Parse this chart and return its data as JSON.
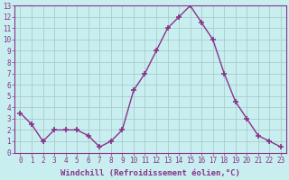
{
  "x": [
    0,
    1,
    2,
    3,
    4,
    5,
    6,
    7,
    8,
    9,
    10,
    11,
    12,
    13,
    14,
    15,
    16,
    17,
    18,
    19,
    20,
    21,
    22,
    23
  ],
  "y": [
    3.5,
    2.5,
    1.0,
    2.0,
    2.0,
    2.0,
    1.5,
    0.5,
    1.0,
    2.0,
    5.5,
    7.0,
    9.0,
    11.0,
    12.0,
    13.0,
    11.5,
    10.0,
    7.0,
    4.5,
    3.0,
    1.5,
    1.0,
    0.5
  ],
  "line_color": "#883388",
  "marker": "+",
  "markersize": 4,
  "markeredgewidth": 1.2,
  "linewidth": 1.0,
  "linestyle": "-",
  "xlabel": "Windchill (Refroidissement éolien,°C)",
  "ylabel": "",
  "title": "",
  "xlim": [
    -0.5,
    23.5
  ],
  "ylim": [
    0,
    13
  ],
  "xticks": [
    0,
    1,
    2,
    3,
    4,
    5,
    6,
    7,
    8,
    9,
    10,
    11,
    12,
    13,
    14,
    15,
    16,
    17,
    18,
    19,
    20,
    21,
    22,
    23
  ],
  "yticks": [
    0,
    1,
    2,
    3,
    4,
    5,
    6,
    7,
    8,
    9,
    10,
    11,
    12,
    13
  ],
  "bg_color": "#c8eef0",
  "grid_color": "#aacccc",
  "tick_color": "#883388",
  "label_color": "#883388",
  "xlabel_fontsize": 6.5,
  "tick_fontsize": 5.5,
  "fig_width": 3.2,
  "fig_height": 2.0,
  "dpi": 100
}
